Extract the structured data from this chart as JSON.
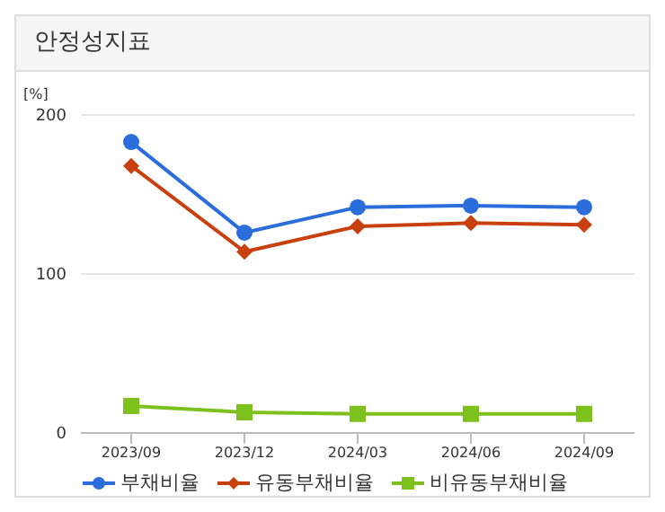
{
  "chart_data": {
    "type": "line",
    "title": "안정성지표",
    "ylabel": "[%]",
    "categories": [
      "2023/09",
      "2023/12",
      "2024/03",
      "2024/06",
      "2024/09"
    ],
    "series": [
      {
        "name": "부채비율",
        "color": "#2a6ddb",
        "marker": "circle",
        "values": [
          183,
          126,
          142,
          143,
          142
        ]
      },
      {
        "name": "유동부채비율",
        "color": "#c9400f",
        "marker": "diamond",
        "values": [
          168,
          114,
          130,
          132,
          131
        ]
      },
      {
        "name": "비유동부채비율",
        "color": "#7cc11c",
        "marker": "square",
        "values": [
          17,
          13,
          12,
          12,
          12
        ]
      }
    ],
    "ylim": [
      0,
      200
    ],
    "yticks": [
      0,
      100,
      200
    ],
    "grid": "y",
    "legend": "bottom",
    "line_style": "solid"
  }
}
